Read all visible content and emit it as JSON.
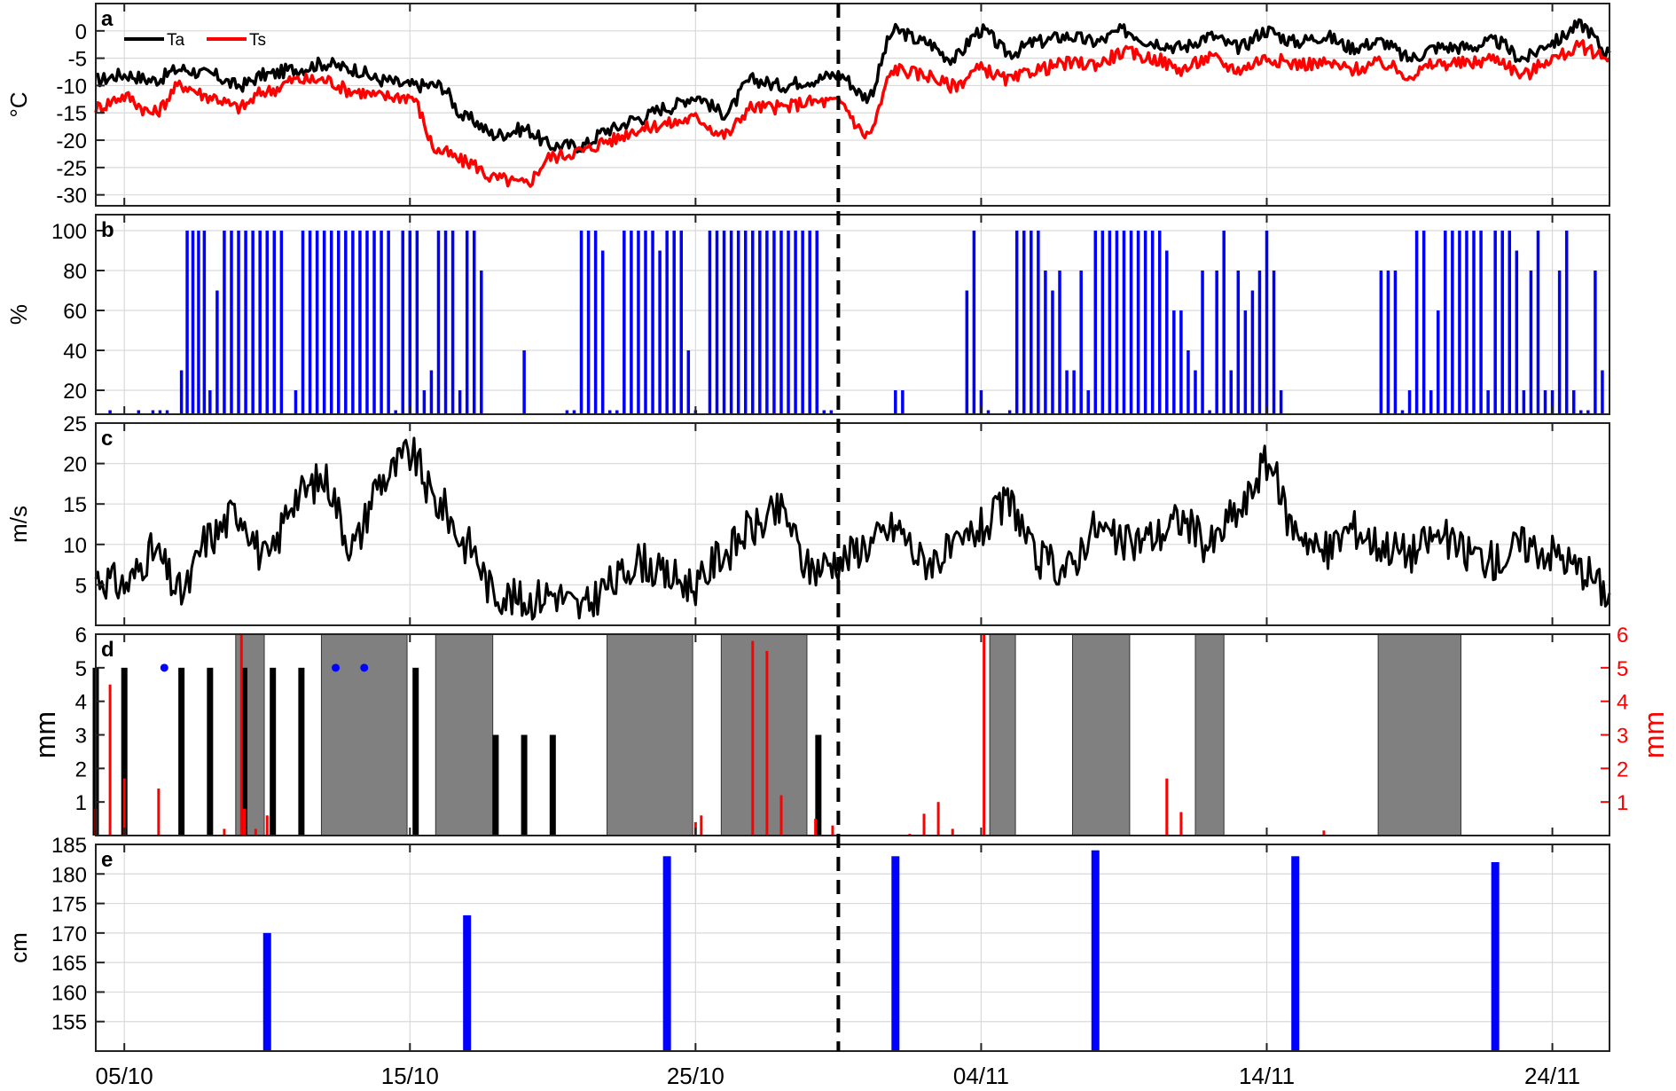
{
  "chart_data": [
    {
      "panel_label": "a",
      "type": "line",
      "ylabel": "°C",
      "ylim": [
        -32,
        5
      ],
      "yticks": [
        0,
        -5,
        -10,
        -15,
        -20,
        -25,
        -30
      ],
      "series": [
        {
          "name": "Ta",
          "color": "#000000",
          "x": [
            "2013-10-04",
            "2013-10-05",
            "2013-10-06",
            "2013-10-07",
            "2013-10-08",
            "2013-10-09",
            "2013-10-10",
            "2013-10-11",
            "2013-10-12",
            "2013-10-13",
            "2013-10-14",
            "2013-10-15",
            "2013-10-16",
            "2013-10-17",
            "2013-10-18",
            "2013-10-19",
            "2013-10-20",
            "2013-10-21",
            "2013-10-22",
            "2013-10-23",
            "2013-10-24",
            "2013-10-25",
            "2013-10-26",
            "2013-10-27",
            "2013-10-28",
            "2013-10-29",
            "2013-10-30",
            "2013-10-31",
            "2013-11-01",
            "2013-11-02",
            "2013-11-03",
            "2013-11-04",
            "2013-11-05",
            "2013-11-06",
            "2013-11-07",
            "2013-11-08",
            "2013-11-09",
            "2013-11-10",
            "2013-11-11",
            "2013-11-12",
            "2013-11-13",
            "2013-11-14",
            "2013-11-15",
            "2013-11-16",
            "2013-11-17",
            "2013-11-18",
            "2013-11-19",
            "2013-11-20",
            "2013-11-21",
            "2013-11-22",
            "2013-11-23",
            "2013-11-24",
            "2013-11-25",
            "2013-11-26"
          ],
          "values": [
            -9,
            -8,
            -9,
            -7,
            -8,
            -10,
            -8,
            -7,
            -6,
            -7,
            -9,
            -10,
            -10,
            -16,
            -19,
            -18,
            -21,
            -21,
            -18,
            -16,
            -14,
            -12,
            -15,
            -9,
            -10,
            -9,
            -8,
            -12,
            0,
            -2,
            -5,
            0,
            -4,
            -2,
            -1,
            -2,
            0,
            -2,
            -3,
            -1,
            -3,
            0,
            -2,
            -1,
            -3,
            -2,
            -5,
            -3,
            -3,
            -2,
            -5,
            -2,
            1,
            -4
          ]
        },
        {
          "name": "Ts",
          "color": "#ff0000",
          "x": [
            "2013-10-04",
            "2013-10-05",
            "2013-10-06",
            "2013-10-07",
            "2013-10-08",
            "2013-10-09",
            "2013-10-10",
            "2013-10-11",
            "2013-10-12",
            "2013-10-13",
            "2013-10-14",
            "2013-10-15",
            "2013-10-16",
            "2013-10-17",
            "2013-10-18",
            "2013-10-19",
            "2013-10-20",
            "2013-10-21",
            "2013-10-22",
            "2013-10-23",
            "2013-10-24",
            "2013-10-25",
            "2013-10-26",
            "2013-10-27",
            "2013-10-28",
            "2013-10-29",
            "2013-10-30",
            "2013-10-31",
            "2013-11-01",
            "2013-11-02",
            "2013-11-03",
            "2013-11-04",
            "2013-11-05",
            "2013-11-06",
            "2013-11-07",
            "2013-11-08",
            "2013-11-09",
            "2013-11-10",
            "2013-11-11",
            "2013-11-12",
            "2013-11-13",
            "2013-11-14",
            "2013-11-15",
            "2013-11-16",
            "2013-11-17",
            "2013-11-18",
            "2013-11-19",
            "2013-11-20",
            "2013-11-21",
            "2013-11-22",
            "2013-11-23",
            "2013-11-24",
            "2013-11-25",
            "2013-11-26"
          ],
          "values": [
            -14,
            -12,
            -15,
            -10,
            -12,
            -14,
            -11,
            -9,
            -9,
            -11,
            -12,
            -12,
            -22,
            -24,
            -27,
            -28,
            -23,
            -22,
            -20,
            -18,
            -17,
            -16,
            -19,
            -14,
            -14,
            -13,
            -13,
            -19,
            -7,
            -8,
            -10,
            -7,
            -9,
            -7,
            -6,
            -6,
            -4,
            -5,
            -7,
            -5,
            -7,
            -5,
            -6,
            -6,
            -7,
            -6,
            -8,
            -6,
            -6,
            -5,
            -8,
            -5,
            -3,
            -5
          ]
        }
      ],
      "legend": "top-left",
      "grid": true
    },
    {
      "panel_label": "b",
      "type": "bar",
      "ylabel": "%",
      "ylim": [
        8,
        108
      ],
      "yticks": [
        20,
        40,
        60,
        80,
        100
      ],
      "color": "#0000ff",
      "x": [
        "2013-10-04.5",
        "2013-10-05.5",
        "2013-10-06",
        "2013-10-06.25",
        "2013-10-06.5",
        "2013-10-07",
        "2013-10-07.2",
        "2013-10-07.4",
        "2013-10-07.6",
        "2013-10-07.8",
        "2013-10-08",
        "2013-10-08.25",
        "2013-10-08.5",
        "2013-10-08.75",
        "2013-10-09",
        "2013-10-09.25",
        "2013-10-09.5",
        "2013-10-09.75",
        "2013-10-10",
        "2013-10-10.25",
        "2013-10-10.5",
        "2013-10-11",
        "2013-10-11.25",
        "2013-10-11.5",
        "2013-10-11.75",
        "2013-10-12",
        "2013-10-12.25",
        "2013-10-12.5",
        "2013-10-12.75",
        "2013-10-13",
        "2013-10-13.25",
        "2013-10-13.5",
        "2013-10-13.75",
        "2013-10-14",
        "2013-10-14.25",
        "2013-10-14.5",
        "2013-10-14.75",
        "2013-10-15",
        "2013-10-15.25",
        "2013-10-15.5",
        "2013-10-15.75",
        "2013-10-16",
        "2013-10-16.25",
        "2013-10-16.5",
        "2013-10-16.75",
        "2013-10-17",
        "2013-10-17.25",
        "2013-10-17.5",
        "2013-10-19",
        "2013-10-20.5",
        "2013-10-20.75",
        "2013-10-21",
        "2013-10-21.25",
        "2013-10-21.5",
        "2013-10-21.75",
        "2013-10-22",
        "2013-10-22.25",
        "2013-10-22.5",
        "2013-10-22.75",
        "2013-10-23",
        "2013-10-23.25",
        "2013-10-23.5",
        "2013-10-23.75",
        "2013-10-24",
        "2013-10-24.25",
        "2013-10-24.5",
        "2013-10-24.75",
        "2013-10-25",
        "2013-10-25.5",
        "2013-10-25.75",
        "2013-10-26",
        "2013-10-26.25",
        "2013-10-26.5",
        "2013-10-26.75",
        "2013-10-27",
        "2013-10-27.25",
        "2013-10-27.5",
        "2013-10-27.75",
        "2013-10-28",
        "2013-10-28.25",
        "2013-10-28.5",
        "2013-10-28.75",
        "2013-10-29",
        "2013-10-29.25",
        "2013-10-29.5",
        "2013-10-29.75",
        "2013-11-01",
        "2013-11-01.25",
        "2013-11-03.5",
        "2013-11-03.75",
        "2013-11-04",
        "2013-11-04.25",
        "2013-11-05",
        "2013-11-05.25",
        "2013-11-05.5",
        "2013-11-05.75",
        "2013-11-06",
        "2013-11-06.25",
        "2013-11-06.5",
        "2013-11-06.75",
        "2013-11-07",
        "2013-11-07.25",
        "2013-11-07.5",
        "2013-11-07.75",
        "2013-11-08",
        "2013-11-08.25",
        "2013-11-08.5",
        "2013-11-08.75",
        "2013-11-09",
        "2013-11-09.25",
        "2013-11-09.5",
        "2013-11-09.75",
        "2013-11-10",
        "2013-11-10.25",
        "2013-11-10.5",
        "2013-11-10.75",
        "2013-11-11",
        "2013-11-11.25",
        "2013-11-11.5",
        "2013-11-11.75",
        "2013-11-12",
        "2013-11-12.25",
        "2013-11-12.5",
        "2013-11-12.75",
        "2013-11-13",
        "2013-11-13.25",
        "2013-11-13.5",
        "2013-11-13.75",
        "2013-11-14",
        "2013-11-14.25",
        "2013-11-14.5",
        "2013-11-18",
        "2013-11-18.25",
        "2013-11-18.5",
        "2013-11-18.75",
        "2013-11-19",
        "2013-11-19.25",
        "2013-11-19.5",
        "2013-11-19.75",
        "2013-11-20",
        "2013-11-20.25",
        "2013-11-20.5",
        "2013-11-20.75",
        "2013-11-21",
        "2013-11-21.25",
        "2013-11-21.5",
        "2013-11-21.75",
        "2013-11-22",
        "2013-11-22.25",
        "2013-11-22.5",
        "2013-11-22.75",
        "2013-11-23",
        "2013-11-23.25",
        "2013-11-23.5",
        "2013-11-23.75",
        "2013-11-24",
        "2013-11-24.25",
        "2013-11-24.5",
        "2013-11-24.75",
        "2013-11-25",
        "2013-11-25.25",
        "2013-11-25.5",
        "2013-11-25.75"
      ],
      "values": [
        10,
        10,
        10,
        10,
        10,
        30,
        100,
        100,
        100,
        100,
        20,
        70,
        100,
        100,
        100,
        100,
        100,
        100,
        100,
        100,
        100,
        20,
        100,
        100,
        100,
        100,
        100,
        100,
        100,
        100,
        100,
        100,
        100,
        100,
        100,
        10,
        100,
        100,
        100,
        20,
        30,
        100,
        100,
        100,
        20,
        100,
        100,
        80,
        40,
        10,
        10,
        100,
        100,
        100,
        90,
        10,
        10,
        100,
        100,
        100,
        100,
        100,
        90,
        100,
        100,
        100,
        40,
        10,
        100,
        100,
        100,
        100,
        100,
        100,
        100,
        100,
        100,
        100,
        100,
        100,
        100,
        100,
        100,
        100,
        10,
        10,
        20,
        20,
        70,
        100,
        20,
        10,
        10,
        100,
        100,
        100,
        100,
        80,
        70,
        80,
        30,
        30,
        80,
        20,
        100,
        100,
        100,
        100,
        100,
        100,
        100,
        100,
        100,
        100,
        90,
        60,
        60,
        40,
        30,
        80,
        10,
        80,
        100,
        30,
        80,
        60,
        70,
        80,
        100,
        80,
        20,
        80,
        80,
        80,
        10,
        20,
        100,
        100,
        20,
        60,
        100,
        100,
        100,
        100,
        100,
        100,
        20,
        100,
        100,
        100,
        90,
        20,
        80,
        100,
        20,
        20,
        80,
        100,
        20,
        10,
        10,
        80,
        30
      ],
      "grid": true
    },
    {
      "panel_label": "c",
      "type": "line",
      "ylabel": "m/s",
      "ylim": [
        0,
        25
      ],
      "yticks": [
        5,
        10,
        15,
        20,
        25
      ],
      "series": [
        {
          "name": "",
          "color": "#000000",
          "x": [
            "2013-10-04",
            "2013-10-05",
            "2013-10-06",
            "2013-10-07",
            "2013-10-08",
            "2013-10-09",
            "2013-10-10",
            "2013-10-11",
            "2013-10-12",
            "2013-10-13",
            "2013-10-14",
            "2013-10-15",
            "2013-10-16",
            "2013-10-17",
            "2013-10-18",
            "2013-10-19",
            "2013-10-20",
            "2013-10-21",
            "2013-10-22",
            "2013-10-23",
            "2013-10-24",
            "2013-10-25",
            "2013-10-26",
            "2013-10-27",
            "2013-10-28",
            "2013-10-29",
            "2013-10-30",
            "2013-10-31",
            "2013-11-01",
            "2013-11-02",
            "2013-11-03",
            "2013-11-04",
            "2013-11-05",
            "2013-11-06",
            "2013-11-07",
            "2013-11-08",
            "2013-11-09",
            "2013-11-10",
            "2013-11-11",
            "2013-11-12",
            "2013-11-13",
            "2013-11-14",
            "2013-11-15",
            "2013-11-16",
            "2013-11-17",
            "2013-11-18",
            "2013-11-19",
            "2013-11-20",
            "2013-11-21",
            "2013-11-22",
            "2013-11-23",
            "2013-11-24",
            "2013-11-25",
            "2013-11-26"
          ],
          "values": [
            6,
            5,
            9,
            4,
            11,
            14,
            8,
            16,
            18,
            10,
            18,
            21,
            15,
            10,
            4,
            3,
            4,
            2,
            5,
            8,
            6,
            5,
            9,
            12,
            14,
            7,
            8,
            10,
            12,
            8,
            9,
            12,
            15,
            8,
            7,
            12,
            10,
            11,
            13,
            10,
            14,
            20,
            12,
            9,
            12,
            10,
            9,
            11,
            9,
            8,
            10,
            9,
            7,
            4
          ]
        }
      ],
      "grid": true
    },
    {
      "panel_label": "d",
      "type": "bar",
      "ylabel": "mm",
      "y2label": "mm",
      "ylim": [
        0,
        6
      ],
      "yticks": [
        1,
        2,
        3,
        4,
        5,
        6
      ],
      "y2ticks": [
        1,
        2,
        3,
        4,
        5,
        6
      ],
      "series": [
        {
          "name": "",
          "axis": "left",
          "color": "#000000",
          "x": [
            "2013-10-04",
            "2013-10-05",
            "2013-10-07",
            "2013-10-08",
            "2013-10-09.2",
            "2013-10-10.2",
            "2013-10-11.2",
            "2013-10-15.2",
            "2013-10-18",
            "2013-10-19",
            "2013-10-20",
            "2013-10-29.3"
          ],
          "values": [
            5,
            5,
            5,
            5,
            5,
            5,
            5,
            5,
            3,
            3,
            3,
            3
          ]
        },
        {
          "name": "",
          "axis": "right",
          "color": "#ff0000",
          "x": [
            "2013-10-04",
            "2013-10-04.5",
            "2013-10-05",
            "2013-10-06.2",
            "2013-10-08.5",
            "2013-10-09.1",
            "2013-10-09.2",
            "2013-10-09.6",
            "2013-10-10",
            "2013-10-25",
            "2013-10-25.2",
            "2013-10-27",
            "2013-10-27.5",
            "2013-10-28",
            "2013-10-29.2",
            "2013-10-29.8",
            "2013-11-01.5",
            "2013-11-02",
            "2013-11-02.5",
            "2013-11-03",
            "2013-11-04.1",
            "2013-11-10.5",
            "2013-11-11",
            "2013-11-16"
          ],
          "values": [
            0.8,
            4.5,
            1.7,
            1.4,
            0.2,
            6.0,
            0.8,
            0.2,
            0.6,
            0.4,
            0.6,
            5.8,
            5.5,
            1.2,
            0.5,
            0.3,
            0.05,
            0.65,
            1.0,
            0.2,
            6.0,
            1.7,
            0.7,
            0.15
          ]
        },
        {
          "name": "",
          "type": "scatter",
          "color": "#0000ff",
          "x": [
            "2013-10-06.4",
            "2013-10-12.4",
            "2013-10-13.4"
          ],
          "values": [
            5,
            5,
            5
          ]
        }
      ],
      "shaded_periods": [
        [
          "2013-10-08.9",
          "2013-10-09.9"
        ],
        [
          "2013-10-11.9",
          "2013-10-14.9"
        ],
        [
          "2013-10-15.9",
          "2013-10-17.9"
        ],
        [
          "2013-10-21.9",
          "2013-10-24.9"
        ],
        [
          "2013-10-25.9",
          "2013-10-28.9"
        ],
        [
          "2013-11-04.3",
          "2013-11-05.2"
        ],
        [
          "2013-11-07.2",
          "2013-11-09.2"
        ],
        [
          "2013-11-11.5",
          "2013-11-12.5"
        ],
        [
          "2013-11-17.9",
          "2013-11-20.8"
        ]
      ],
      "shade_color": "#808080"
    },
    {
      "panel_label": "e",
      "type": "bar",
      "ylabel": "cm",
      "ylim": [
        150,
        185
      ],
      "yticks": [
        155,
        160,
        165,
        170,
        175,
        180,
        185
      ],
      "color": "#0000ff",
      "x": [
        "2013-10-10",
        "2013-10-17",
        "2013-10-24",
        "2013-11-01",
        "2013-11-08",
        "2013-11-15",
        "2013-11-22"
      ],
      "values": [
        170,
        173,
        183,
        183,
        184,
        183,
        182
      ],
      "grid": true
    }
  ],
  "xaxis": {
    "ticks": [
      "05/10",
      "15/10",
      "25/10",
      "04/11",
      "14/11",
      "24/11"
    ],
    "tick_dates": [
      "2013-10-05",
      "2013-10-15",
      "2013-10-25",
      "2013-11-04",
      "2013-11-14",
      "2013-11-24"
    ],
    "range": [
      "2013-10-04",
      "2013-11-26"
    ]
  },
  "marker_line": {
    "x": "2013-10-30",
    "style": "dashed"
  }
}
